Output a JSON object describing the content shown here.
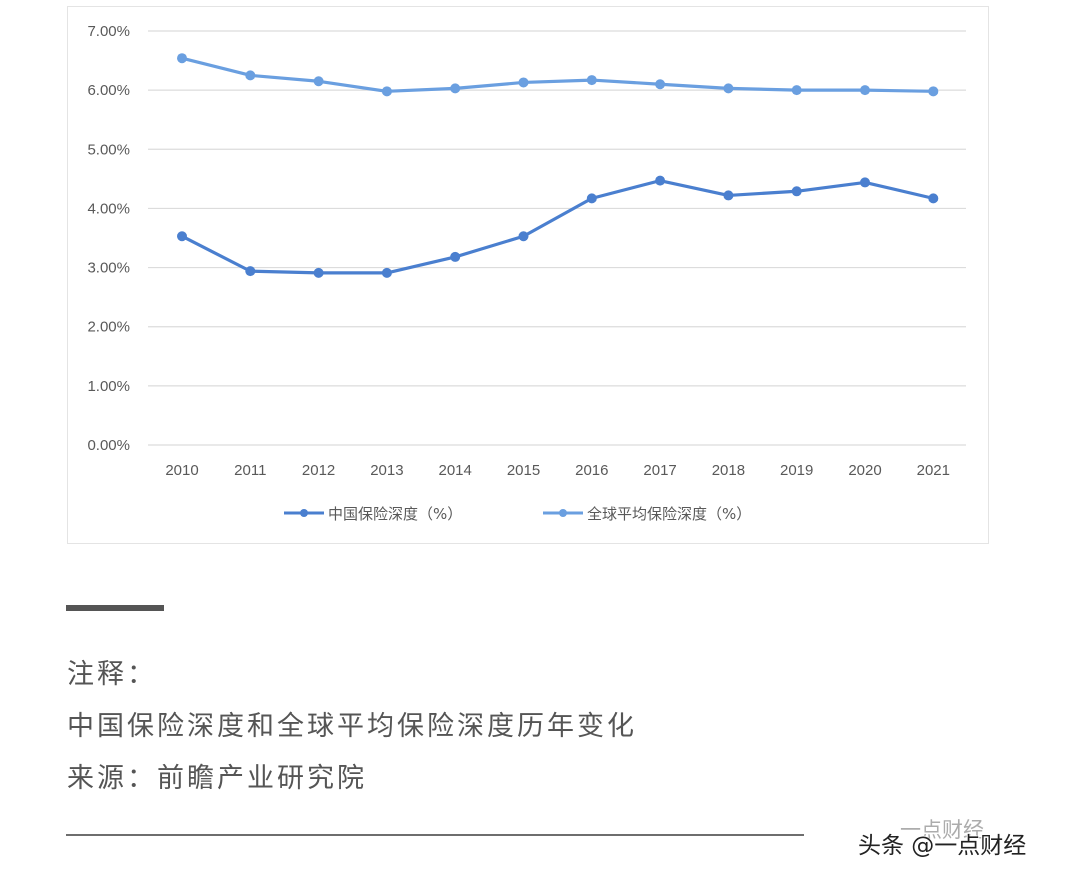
{
  "chart_data": {
    "type": "line",
    "title": "",
    "xlabel": "",
    "ylabel": "",
    "categories": [
      "2010",
      "2011",
      "2012",
      "2013",
      "2014",
      "2015",
      "2016",
      "2017",
      "2018",
      "2019",
      "2020",
      "2021"
    ],
    "series": [
      {
        "name": "中国保险深度（%）",
        "color": "#4a7fcf",
        "values": [
          3.53,
          2.94,
          2.91,
          2.91,
          3.18,
          3.53,
          4.17,
          4.47,
          4.22,
          4.29,
          4.44,
          4.17
        ]
      },
      {
        "name": "全球平均保险深度（%）",
        "color": "#6a9fe0",
        "values": [
          6.54,
          6.25,
          6.15,
          5.98,
          6.03,
          6.13,
          6.17,
          6.1,
          6.03,
          6.0,
          6.0,
          5.98
        ]
      }
    ],
    "yticks": [
      "0.00%",
      "1.00%",
      "2.00%",
      "3.00%",
      "4.00%",
      "5.00%",
      "6.00%",
      "7.00%"
    ],
    "ylim": [
      0,
      7
    ],
    "grid": true,
    "legend_position": "bottom",
    "watermark": "前瞻产业研究院"
  },
  "caption": {
    "note_label": "注释：",
    "description": "中国保险深度和全球平均保险深度历年变化",
    "source": "来源：前瞻产业研究院"
  },
  "footer": {
    "watermark": "头条 @一点财经",
    "ghost_text": "一点财经"
  }
}
